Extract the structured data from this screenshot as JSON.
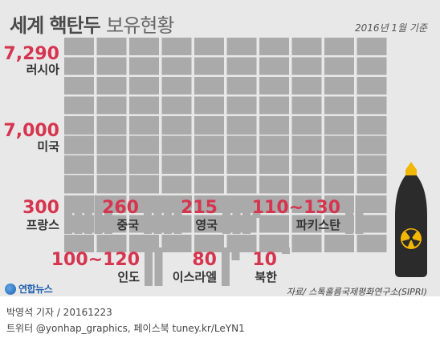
{
  "header": {
    "title_bold": "세계 핵탄두",
    "title_thin": "보유현황",
    "basis": "2016년 1월 기준"
  },
  "chart_data": {
    "type": "bar",
    "title": "세계 핵탄두 보유현황",
    "categories": [
      "러시아",
      "미국",
      "프랑스",
      "중국",
      "영국",
      "파키스탄",
      "인도",
      "이스라엘",
      "북한"
    ],
    "value_labels": [
      "7,290",
      "7,000",
      "300",
      "260",
      "215",
      "110~130",
      "100~120",
      "80",
      "10"
    ],
    "values": [
      7290,
      7000,
      300,
      260,
      215,
      130,
      120,
      80,
      10
    ]
  },
  "footer": {
    "source": "자료/ 스톡홀름국제평화연구소(SIPRI)",
    "logo_text": "연합뉴스",
    "credit_line1": "박영석 기자 / 20161223",
    "credit_line2": "트위터 @yonhap_graphics, 페이스북 tuney.kr/LeYN1"
  },
  "colors": {
    "background": "#e8e8e8",
    "value_red": "#d6354f",
    "warhead_block": "#aaaaaa",
    "missile_body": "#2b2b2b",
    "missile_tip": "#f2b705"
  }
}
